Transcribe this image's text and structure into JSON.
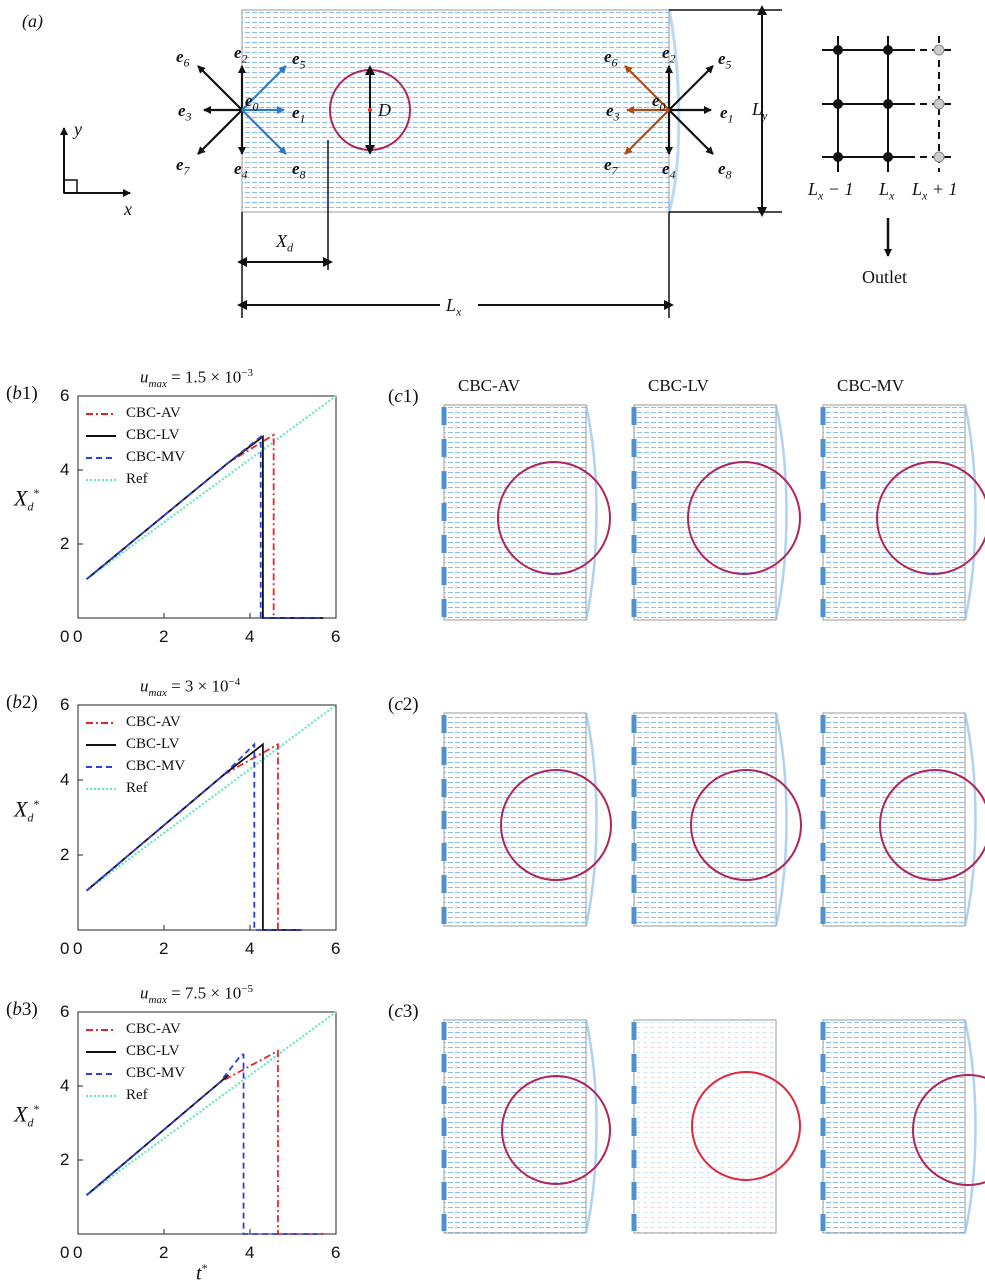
{
  "figure": {
    "panel_a": {
      "label": "(a)",
      "axes_labels": {
        "x": "x",
        "y": "y"
      },
      "left_vectors": [
        "e0",
        "e1",
        "e2",
        "e3",
        "e4",
        "e5",
        "e6",
        "e7",
        "e8"
      ],
      "right_vectors": [
        "e0",
        "e1",
        "e2",
        "e3",
        "e4",
        "e5",
        "e6",
        "e7",
        "e8"
      ],
      "diameter": "D",
      "droplet_pos": "Xd",
      "width": "Lx",
      "height": "Ly",
      "grid_labels": [
        "Lx − 1",
        "Lx",
        "Lx + 1"
      ],
      "outlet": "Outlet",
      "colors": {
        "flow": "#7fb5e6",
        "droplet": "#b0245a",
        "vec_black": "#111111",
        "vec_blue": "#2f79c4",
        "vec_brown": "#b24a12",
        "ghost": "#bbbbbb"
      }
    },
    "panel_b_labels": [
      "(b1)",
      "(b2)",
      "(b3)"
    ],
    "panel_c_labels": [
      "(c1)",
      "(c2)",
      "(c3)"
    ],
    "column_headers": [
      "CBC-AV",
      "CBC-LV",
      "CBC-MV"
    ],
    "titles": [
      "u_max = 1.5 × 10^−3",
      "u_max = 3 × 10^−4",
      "u_max = 7.5 × 10^−5"
    ],
    "xlabel": "t*",
    "ylabel": "X_d*",
    "legend": [
      "CBC-AV",
      "CBC-LV",
      "CBC-MV",
      "Ref"
    ],
    "series_colors": {
      "CBC-AV": "#e8242b",
      "CBC-LV": "#111111",
      "CBC-MV": "#2b3ee0",
      "Ref": "#66e6c0"
    }
  },
  "chart_data": [
    {
      "type": "line",
      "title": "u_max = 1.5 × 10^−3",
      "xlabel": "t*",
      "ylabel": "X_d*",
      "xlim": [
        0,
        6
      ],
      "ylim": [
        0,
        6
      ],
      "xticks": [
        0,
        2,
        4,
        6
      ],
      "yticks": [
        2,
        4,
        6
      ],
      "series": [
        {
          "name": "CBC-AV",
          "x": [
            0.2,
            3.5,
            4.55,
            4.55,
            5.7
          ],
          "y": [
            1.05,
            4.2,
            4.95,
            0,
            0
          ]
        },
        {
          "name": "CBC-LV",
          "x": [
            0.2,
            3.5,
            4.3,
            4.3,
            5.7
          ],
          "y": [
            1.05,
            4.2,
            4.9,
            0,
            0
          ]
        },
        {
          "name": "CBC-MV",
          "x": [
            0.2,
            3.5,
            4.25,
            4.25,
            5.7
          ],
          "y": [
            1.05,
            4.2,
            4.9,
            0,
            0
          ]
        },
        {
          "name": "Ref",
          "x": [
            0.2,
            6.0
          ],
          "y": [
            1.05,
            6.0
          ]
        }
      ]
    },
    {
      "type": "line",
      "title": "u_max = 3 × 10^−4",
      "xlabel": "t*",
      "ylabel": "X_d*",
      "xlim": [
        0,
        6
      ],
      "ylim": [
        0,
        6
      ],
      "xticks": [
        0,
        2,
        4,
        6
      ],
      "yticks": [
        2,
        4,
        6
      ],
      "series": [
        {
          "name": "CBC-AV",
          "x": [
            0.2,
            3.4,
            4.65,
            4.65,
            5.2
          ],
          "y": [
            1.05,
            4.15,
            4.95,
            0,
            0
          ]
        },
        {
          "name": "CBC-LV",
          "x": [
            0.2,
            3.4,
            4.3,
            4.3,
            5.2
          ],
          "y": [
            1.05,
            4.15,
            4.95,
            0,
            0
          ]
        },
        {
          "name": "CBC-MV",
          "x": [
            0.2,
            3.4,
            4.1,
            4.1,
            5.2
          ],
          "y": [
            1.05,
            4.15,
            4.95,
            0,
            0
          ]
        },
        {
          "name": "Ref",
          "x": [
            0.2,
            6.0
          ],
          "y": [
            1.05,
            6.0
          ]
        }
      ]
    },
    {
      "type": "line",
      "title": "u_max = 7.5 × 10^−5",
      "xlabel": "t*",
      "ylabel": "X_d*",
      "xlim": [
        0,
        6
      ],
      "ylim": [
        0,
        6
      ],
      "xticks": [
        0,
        2,
        4,
        6
      ],
      "yticks": [
        2,
        4,
        6
      ],
      "series": [
        {
          "name": "CBC-AV",
          "x": [
            0.2,
            3.3,
            4.65,
            4.65,
            5.7
          ],
          "y": [
            1.05,
            4.1,
            4.95,
            0,
            0
          ]
        },
        {
          "name": "CBC-LV",
          "x": [
            0.2,
            3.3,
            3.5
          ],
          "y": [
            1.05,
            4.1,
            4.3
          ]
        },
        {
          "name": "CBC-MV",
          "x": [
            0.2,
            3.3,
            3.8,
            3.85,
            3.85,
            5.7
          ],
          "y": [
            1.05,
            4.1,
            4.85,
            4.85,
            0,
            0
          ]
        },
        {
          "name": "Ref",
          "x": [
            0.2,
            6.0
          ],
          "y": [
            1.05,
            6.0
          ]
        }
      ]
    }
  ]
}
